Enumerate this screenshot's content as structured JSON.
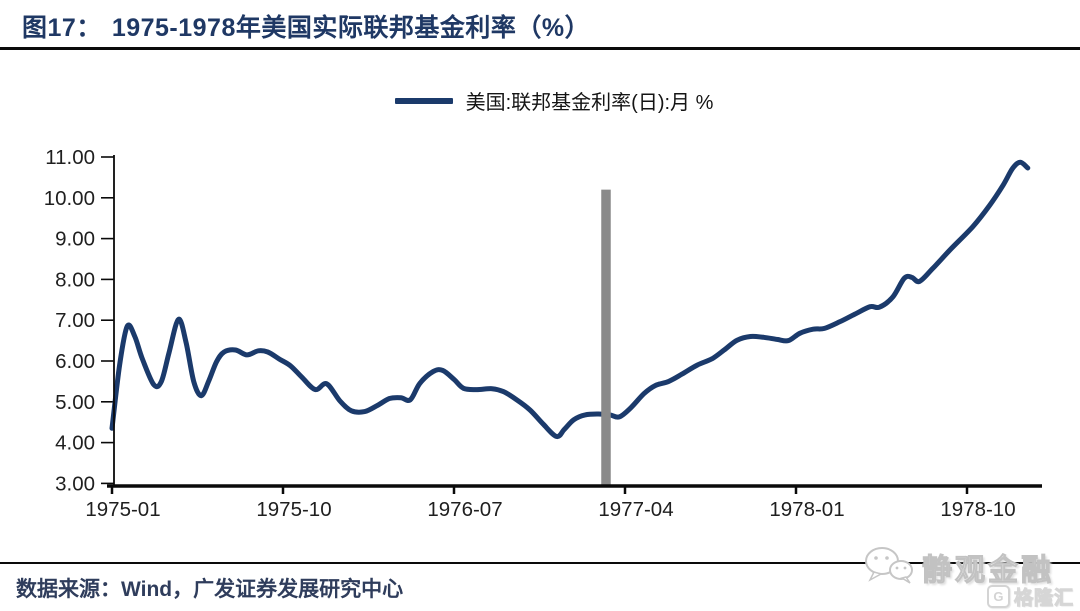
{
  "header": {
    "figure_label": "图17：",
    "title": "1975-1978年美国实际联邦基金利率（%）"
  },
  "legend": {
    "label": "美国:联邦基金利率(日):月 %"
  },
  "footer": {
    "source": "数据来源：Wind，广发证券发展研究中心"
  },
  "watermark": {
    "wechat_icon": "wechat-bubbles-icon",
    "brand": "静观金融",
    "logo_icon": "G",
    "logo_text": "格隆汇"
  },
  "colors": {
    "line": "#1b3a6b",
    "title": "#1f3864",
    "annotation_bar": "#8a8a8a",
    "axis": "#0a0a0a",
    "tick_label": "#1f1f1f"
  },
  "chart_data": {
    "type": "line",
    "title": "1975-1978年美国实际联邦基金利率（%）",
    "legend_position": "top-center",
    "grid": false,
    "y_axis": {
      "min": 3,
      "max": 11,
      "tick_interval": 1,
      "tick_labels": [
        "11.00",
        "10.00",
        "9.00",
        "8.00",
        "7.00",
        "6.00",
        "5.00",
        "4.00",
        "3.00"
      ]
    },
    "x_axis": {
      "unit": "months_since_1975_01",
      "tick_months": [
        0,
        9,
        18,
        27,
        36,
        45
      ],
      "tick_labels": [
        "1975-01",
        "1975-10",
        "1976-07",
        "1977-04",
        "1978-01",
        "1978-10"
      ]
    },
    "annotation": {
      "type": "vertical-bar",
      "month": 26,
      "value_bottom": 3.0,
      "value_top": 10.2,
      "color": "#8a8a8a"
    },
    "series": [
      {
        "name": "美国:联邦基金利率(日):月 %",
        "color": "#1b3a6b",
        "points": [
          [
            0,
            4.35
          ],
          [
            0.4,
            5.9
          ],
          [
            0.8,
            6.85
          ],
          [
            1.2,
            6.6
          ],
          [
            1.6,
            6.05
          ],
          [
            2.2,
            5.42
          ],
          [
            2.6,
            5.5
          ],
          [
            3.0,
            6.2
          ],
          [
            3.5,
            7.02
          ],
          [
            3.9,
            6.45
          ],
          [
            4.3,
            5.5
          ],
          [
            4.7,
            5.15
          ],
          [
            5.1,
            5.52
          ],
          [
            5.5,
            5.98
          ],
          [
            5.9,
            6.22
          ],
          [
            6.5,
            6.27
          ],
          [
            7.1,
            6.15
          ],
          [
            7.7,
            6.25
          ],
          [
            8.2,
            6.22
          ],
          [
            8.8,
            6.05
          ],
          [
            9.4,
            5.88
          ],
          [
            10.0,
            5.6
          ],
          [
            10.7,
            5.3
          ],
          [
            11.3,
            5.44
          ],
          [
            12.0,
            5.02
          ],
          [
            12.6,
            4.78
          ],
          [
            13.3,
            4.76
          ],
          [
            14.0,
            4.92
          ],
          [
            14.6,
            5.08
          ],
          [
            15.2,
            5.1
          ],
          [
            15.7,
            5.05
          ],
          [
            16.2,
            5.45
          ],
          [
            16.9,
            5.74
          ],
          [
            17.4,
            5.77
          ],
          [
            18.0,
            5.55
          ],
          [
            18.5,
            5.33
          ],
          [
            19.2,
            5.3
          ],
          [
            20.0,
            5.32
          ],
          [
            20.6,
            5.25
          ],
          [
            21.3,
            5.05
          ],
          [
            22.0,
            4.8
          ],
          [
            22.7,
            4.45
          ],
          [
            23.4,
            4.15
          ],
          [
            23.8,
            4.32
          ],
          [
            24.3,
            4.56
          ],
          [
            24.9,
            4.68
          ],
          [
            25.6,
            4.7
          ],
          [
            26.2,
            4.68
          ],
          [
            26.7,
            4.63
          ],
          [
            27.3,
            4.85
          ],
          [
            28.0,
            5.2
          ],
          [
            28.6,
            5.4
          ],
          [
            29.3,
            5.5
          ],
          [
            30.0,
            5.68
          ],
          [
            30.8,
            5.9
          ],
          [
            31.6,
            6.06
          ],
          [
            32.3,
            6.3
          ],
          [
            32.9,
            6.51
          ],
          [
            33.6,
            6.6
          ],
          [
            34.3,
            6.58
          ],
          [
            35.0,
            6.53
          ],
          [
            35.6,
            6.5
          ],
          [
            36.2,
            6.68
          ],
          [
            36.9,
            6.78
          ],
          [
            37.5,
            6.8
          ],
          [
            38.3,
            6.96
          ],
          [
            39.1,
            7.15
          ],
          [
            39.9,
            7.33
          ],
          [
            40.4,
            7.32
          ],
          [
            41.1,
            7.57
          ],
          [
            41.7,
            8.03
          ],
          [
            42.1,
            8.05
          ],
          [
            42.5,
            7.95
          ],
          [
            43.2,
            8.27
          ],
          [
            44.1,
            8.72
          ],
          [
            45.3,
            9.29
          ],
          [
            46.2,
            9.82
          ],
          [
            46.9,
            10.31
          ],
          [
            47.4,
            10.72
          ],
          [
            47.8,
            10.87
          ],
          [
            48.2,
            10.73
          ]
        ]
      }
    ]
  }
}
